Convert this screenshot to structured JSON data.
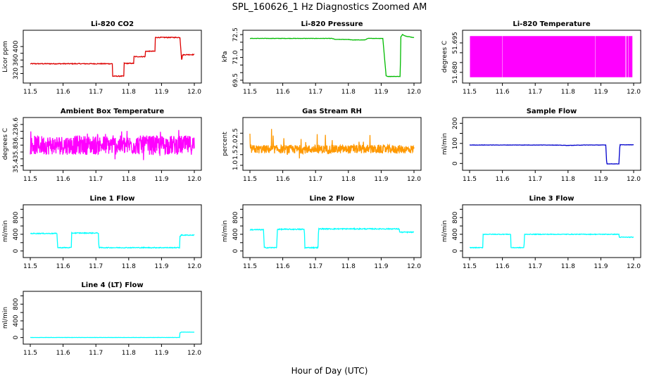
{
  "main_title": "SPL_160626_1 Hz Diagnostics Zoomed AM",
  "global_xlabel": "Hour of Day (UTC)",
  "chart_data": [
    {
      "id": "co2",
      "type": "line",
      "title": "Li-820 CO2",
      "ylabel": "Licor ppm",
      "color": "#dd0000",
      "xlim": [
        11.5,
        12.0
      ],
      "ylim": [
        300,
        440
      ],
      "x_ticks": [
        11.5,
        11.6,
        11.7,
        11.8,
        11.9,
        12.0
      ],
      "y_ticks": [
        320,
        360,
        400
      ],
      "y_tick_labels": [
        "320",
        "360",
        "400"
      ],
      "extra_y_ticks": [
        340,
        380
      ],
      "noise": 1.2,
      "x": [
        11.5,
        11.75,
        11.751,
        11.785,
        11.786,
        11.815,
        11.816,
        11.85,
        11.851,
        11.88,
        11.881,
        11.955,
        11.956,
        11.962,
        11.963,
        11.975,
        12.0
      ],
      "y": [
        349,
        349,
        312,
        312,
        350,
        350,
        370,
        370,
        386,
        386,
        427,
        427,
        430,
        352,
        375,
        376,
        376
      ]
    },
    {
      "id": "pressure",
      "type": "line",
      "title": "Li-820 Pressure",
      "ylabel": "kPa",
      "color": "#00bb00",
      "xlim": [
        11.5,
        12.0
      ],
      "ylim": [
        69.5,
        72.6
      ],
      "x_ticks": [
        11.5,
        11.6,
        11.7,
        11.8,
        11.9,
        12.0
      ],
      "y_ticks": [
        69.5,
        71.0,
        72.5
      ],
      "y_tick_labels": [
        "69.5",
        "71.0",
        "72.5"
      ],
      "extra_y_ticks": [
        70.0,
        70.5,
        71.5,
        72.0
      ],
      "noise": 0.01,
      "x": [
        11.5,
        11.75,
        11.76,
        11.8,
        11.81,
        11.85,
        11.86,
        11.905,
        11.915,
        11.918,
        11.958,
        11.96,
        11.965,
        11.975,
        12.0
      ],
      "y": [
        72.25,
        72.25,
        72.18,
        72.18,
        72.15,
        72.15,
        72.25,
        72.25,
        69.8,
        69.75,
        69.75,
        72.35,
        72.5,
        72.4,
        72.3
      ]
    },
    {
      "id": "li820-temp",
      "type": "line",
      "title": "Li-820 Temperature",
      "ylabel": "degrees C",
      "color": "#ff00ff",
      "xlim": [
        11.5,
        12.0
      ],
      "ylim": [
        51.676,
        51.7
      ],
      "x_ticks": [
        11.5,
        11.6,
        11.7,
        11.8,
        11.9,
        12.0
      ],
      "y_ticks": [
        51.68,
        51.695
      ],
      "y_tick_labels": [
        "51.680",
        "51.695"
      ],
      "extra_y_ticks": [
        51.685,
        51.69
      ],
      "noise": 0,
      "x": [
        11.5,
        12.0
      ],
      "y": [
        51.6775,
        51.6985
      ]
    },
    {
      "id": "box-temp",
      "type": "line",
      "title": "Ambient Box Temperature",
      "ylabel": "degrees C",
      "color": "#ff00ff",
      "xlim": [
        11.5,
        12.0
      ],
      "ylim": [
        35.35,
        36.72
      ],
      "x_ticks": [
        11.5,
        11.6,
        11.7,
        11.8,
        11.9,
        12.0
      ],
      "y_ticks": [
        35.4,
        35.8,
        36.2,
        36.6
      ],
      "y_tick_labels": [
        "35.4",
        "35.8",
        "36.2",
        "36.6"
      ],
      "extra_y_ticks": [
        35.6,
        36.0,
        36.4
      ],
      "noise": 0.28,
      "x": [
        11.5,
        12.0
      ],
      "y": [
        36.0,
        36.0
      ]
    },
    {
      "id": "rh",
      "type": "line",
      "title": "Gas Stream RH",
      "ylabel": "percent",
      "color": "#ff9900",
      "xlim": [
        11.5,
        12.0
      ],
      "ylim": [
        0.9,
        3.1
      ],
      "x_ticks": [
        11.5,
        11.6,
        11.7,
        11.8,
        11.9,
        12.0
      ],
      "y_ticks": [
        1.0,
        1.5,
        2.0,
        2.5
      ],
      "y_tick_labels": [
        "1.0",
        "1.5",
        "2.0",
        "2.5"
      ],
      "extra_y_ticks": [],
      "noise": 0.2,
      "x": [
        11.5,
        12.0
      ],
      "y": [
        1.75,
        1.75
      ]
    },
    {
      "id": "sample-flow",
      "type": "line",
      "title": "Sample Flow",
      "ylabel": "ml/min",
      "color": "#0000cc",
      "xlim": [
        11.5,
        12.0
      ],
      "ylim": [
        -20,
        215
      ],
      "x_ticks": [
        11.5,
        11.6,
        11.7,
        11.8,
        11.9,
        12.0
      ],
      "y_ticks": [
        0,
        100,
        200
      ],
      "y_tick_labels": [
        "0",
        "100",
        "200"
      ],
      "extra_y_ticks": [
        50,
        150
      ],
      "noise": 0.8,
      "x": [
        11.5,
        11.75,
        11.8,
        11.85,
        11.915,
        11.918,
        11.955,
        11.958,
        12.0
      ],
      "y": [
        92,
        92,
        90,
        92,
        92,
        -2,
        -2,
        93,
        93
      ]
    },
    {
      "id": "line1-flow",
      "type": "line",
      "title": "Line 1 Flow",
      "ylabel": "ml/min",
      "color": "#00ffff",
      "xlim": [
        11.5,
        12.0
      ],
      "ylim": [
        -90,
        1040
      ],
      "x_ticks": [
        11.5,
        11.6,
        11.7,
        11.8,
        11.9,
        12.0
      ],
      "y_ticks": [
        0,
        400,
        800
      ],
      "y_tick_labels": [
        "0",
        "400",
        "800"
      ],
      "extra_y_ticks": [
        200,
        600,
        1000
      ],
      "noise": 10,
      "x": [
        11.5,
        11.582,
        11.583,
        11.625,
        11.626,
        11.708,
        11.709,
        11.955,
        11.956,
        11.96,
        12.0
      ],
      "y": [
        420,
        420,
        80,
        80,
        430,
        430,
        80,
        80,
        350,
        380,
        380
      ]
    },
    {
      "id": "line2-flow",
      "type": "line",
      "title": "Line 2 Flow",
      "ylabel": "ml/min",
      "color": "#00ffff",
      "xlim": [
        11.5,
        12.0
      ],
      "ylim": [
        -90,
        1040
      ],
      "x_ticks": [
        11.5,
        11.6,
        11.7,
        11.8,
        11.9,
        12.0
      ],
      "y_ticks": [
        0,
        400,
        800
      ],
      "y_tick_labels": [
        "0",
        "400",
        "800"
      ],
      "extra_y_ticks": [
        200,
        600,
        1000
      ],
      "noise": 12,
      "x": [
        11.5,
        11.542,
        11.543,
        11.582,
        11.583,
        11.666,
        11.667,
        11.708,
        11.709,
        11.955,
        11.956,
        12.0
      ],
      "y": [
        510,
        510,
        80,
        80,
        520,
        520,
        80,
        80,
        530,
        530,
        450,
        450
      ]
    },
    {
      "id": "line3-flow",
      "type": "line",
      "title": "Line 3 Flow",
      "ylabel": "ml/min",
      "color": "#00ffff",
      "xlim": [
        11.5,
        12.0
      ],
      "ylim": [
        -90,
        1040
      ],
      "x_ticks": [
        11.5,
        11.6,
        11.7,
        11.8,
        11.9,
        12.0
      ],
      "y_ticks": [
        0,
        400,
        800
      ],
      "y_tick_labels": [
        "0",
        "400",
        "800"
      ],
      "extra_y_ticks": [
        200,
        600,
        1000
      ],
      "noise": 8,
      "x": [
        11.5,
        11.54,
        11.541,
        11.625,
        11.626,
        11.666,
        11.667,
        11.955,
        11.956,
        12.0
      ],
      "y": [
        80,
        80,
        400,
        400,
        80,
        80,
        400,
        400,
        330,
        330
      ]
    },
    {
      "id": "line4-flow",
      "type": "line",
      "title": "Line 4 (LT) Flow",
      "ylabel": "ml/min",
      "color": "#00ffff",
      "xlim": [
        11.5,
        12.0
      ],
      "ylim": [
        -90,
        1040
      ],
      "x_ticks": [
        11.5,
        11.6,
        11.7,
        11.8,
        11.9,
        12.0
      ],
      "y_ticks": [
        0,
        400,
        800
      ],
      "y_tick_labels": [
        "0",
        "400",
        "800"
      ],
      "extra_y_ticks": [
        200,
        600,
        1000
      ],
      "noise": 2,
      "x": [
        11.5,
        11.955,
        11.956,
        11.96,
        12.0
      ],
      "y": [
        2,
        2,
        110,
        130,
        130
      ]
    }
  ]
}
